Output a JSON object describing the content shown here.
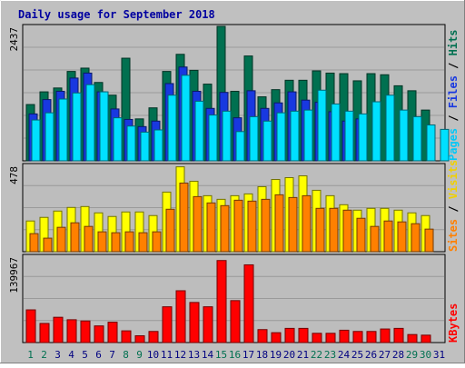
{
  "chart_data": {
    "type": "bar",
    "title": "Daily usage for September 2018",
    "categories": [
      "1",
      "2",
      "3",
      "4",
      "5",
      "6",
      "7",
      "8",
      "9",
      "10",
      "11",
      "12",
      "13",
      "14",
      "15",
      "16",
      "17",
      "18",
      "19",
      "20",
      "21",
      "22",
      "23",
      "24",
      "25",
      "26",
      "27",
      "28",
      "29",
      "30",
      "31"
    ],
    "weekend_days": [
      "1",
      "2",
      "8",
      "9",
      "15",
      "16",
      "22",
      "23",
      "29",
      "30"
    ],
    "panels": [
      {
        "id": "hits-files-pages",
        "max_label": "2437",
        "ylim": [
          0,
          2437
        ],
        "right_labels": [
          "Pages",
          "Files",
          "Hits"
        ],
        "series": [
          {
            "name": "Hits",
            "color": "#007050",
            "values": [
              1020,
              1250,
              1320,
              1620,
              1680,
              1420,
              1190,
              1860,
              760,
              960,
              1620,
              1930,
              1640,
              1390,
              2437,
              1260,
              1900,
              1160,
              1290,
              1460,
              1460,
              1630,
              1590,
              1580,
              1450,
              1580,
              1560,
              1360,
              1270,
              920,
              0
            ]
          },
          {
            "name": "Files",
            "color": "#1838E0",
            "values": [
              850,
              1110,
              1260,
              1500,
              1590,
              1250,
              940,
              750,
              620,
              720,
              1400,
              1700,
              1260,
              950,
              1240,
              780,
              1270,
              950,
              1050,
              1250,
              1100,
              1060,
              890,
              720,
              760,
              0,
              0,
              0,
              0,
              0,
              0
            ]
          },
          {
            "name": "Pages",
            "color": "#00E0FF",
            "values": [
              740,
              870,
              1120,
              1230,
              1380,
              1250,
              780,
              630,
              520,
              560,
              1190,
              1550,
              1080,
              830,
              900,
              530,
              800,
              720,
              870,
              900,
              920,
              1280,
              1030,
              900,
              850,
              1070,
              1190,
              920,
              800,
              650,
              570
            ]
          }
        ]
      },
      {
        "id": "visits-sites",
        "max_label": "478",
        "ylim": [
          0,
          478
        ],
        "right_labels": [
          "Sites",
          "Visits"
        ],
        "series": [
          {
            "name": "Visits",
            "color": "#FFFF00",
            "values": [
              170,
              190,
              225,
              245,
              250,
              215,
              195,
              220,
              220,
              200,
              330,
              470,
              390,
              310,
              290,
              310,
              320,
              360,
              400,
              410,
              420,
              340,
              310,
              260,
              230,
              240,
              240,
              230,
              215,
              200,
              0
            ]
          },
          {
            "name": "Sites",
            "color": "#FF8000",
            "values": [
              100,
              75,
              135,
              160,
              140,
              110,
              105,
              110,
              105,
              110,
              235,
              380,
              305,
              270,
              255,
              285,
              280,
              290,
              315,
              300,
              310,
              240,
              240,
              230,
              185,
              140,
              170,
              165,
              155,
              125,
              0
            ]
          }
        ]
      },
      {
        "id": "kbytes",
        "max_label": "139967",
        "ylim": [
          0,
          139967
        ],
        "right_labels": [
          "KBytes"
        ],
        "series": [
          {
            "name": "KBytes",
            "color": "#FF0000",
            "values": [
              53000,
              31000,
              41000,
              37000,
              35000,
              27000,
              33000,
              19000,
              11000,
              18000,
              58000,
              84000,
              65000,
              58000,
              133000,
              68000,
              126000,
              21000,
              16000,
              23000,
              23000,
              15000,
              15000,
              20000,
              18000,
              18000,
              22000,
              23000,
              13000,
              12000,
              0
            ]
          }
        ]
      }
    ],
    "right_label_colors": {
      "Pages": "#00C8F8",
      "Files": "#1838E0",
      "Hits": "#007050",
      "Sites": "#FF8000",
      "Visits": "#F0D000",
      "KBytes": "#FF0000"
    },
    "x_label_colors": {
      "weekday": "#000080",
      "weekend": "#007050"
    }
  }
}
